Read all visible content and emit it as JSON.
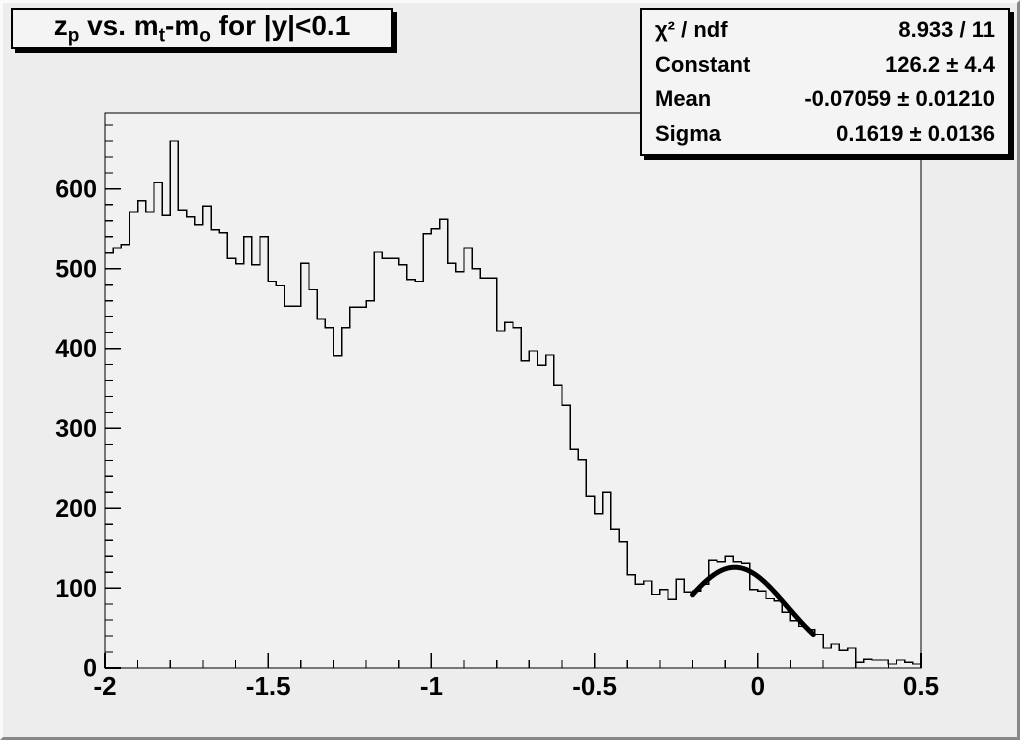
{
  "title_box": {
    "segments": [
      {
        "t": "z"
      },
      {
        "t": "p"
      },
      {
        "t": " vs. m"
      },
      {
        "t": "t"
      },
      {
        "t": "-m"
      },
      {
        "t": "o"
      },
      {
        "t": " for |y|<0.1"
      }
    ],
    "plain": "z_p vs. m_t-m_o for |y|<0.1"
  },
  "stats_box": {
    "rows": [
      {
        "label": "χ² / ndf",
        "value": "8.933 / 11"
      },
      {
        "label": "Constant",
        "value": "126.2 ± 4.4"
      },
      {
        "label": "Mean",
        "value": "-0.07059 ± 0.01210"
      },
      {
        "label": "Sigma",
        "value": "0.1619 ± 0.0136"
      }
    ]
  },
  "colors": {
    "canvas_bg": "#ededed",
    "plot_bg": "#f1f1f1",
    "line": "#000000",
    "fit_line": "#000000",
    "pave_bg": "#f4f4f4",
    "shadow": "#000000"
  },
  "chart_data": {
    "type": "bar",
    "subtype": "step-histogram",
    "title": "z_p vs. m_t-m_o for |y|<0.1",
    "xlabel": "",
    "ylabel": "",
    "grid": false,
    "x_range": [
      -2.0,
      0.5
    ],
    "y_range": [
      0,
      695
    ],
    "bin_start": -2.0,
    "bin_width": 0.025,
    "bin_values": [
      520,
      526,
      530,
      571,
      585,
      571,
      608,
      567,
      660,
      573,
      565,
      555,
      578,
      549,
      545,
      513,
      506,
      540,
      505,
      540,
      484,
      479,
      453,
      453,
      507,
      474,
      437,
      426,
      391,
      426,
      452,
      452,
      460,
      521,
      513,
      513,
      505,
      486,
      484,
      544,
      550,
      562,
      507,
      496,
      526,
      500,
      488,
      488,
      422,
      433,
      426,
      385,
      397,
      379,
      392,
      354,
      329,
      274,
      261,
      215,
      193,
      220,
      174,
      158,
      117,
      105,
      109,
      92,
      98,
      86,
      111,
      95,
      96,
      105,
      135,
      133,
      140,
      133,
      131,
      98,
      96,
      87,
      84,
      70,
      59,
      52,
      48,
      42,
      25,
      30,
      22,
      25,
      7,
      11,
      10,
      10,
      5,
      10,
      7,
      5
    ],
    "x_ticks_major": [
      -2,
      -1.5,
      -1,
      -0.5,
      0,
      0.5
    ],
    "x_tick_labels": [
      "-2",
      "-1.5",
      "-1",
      "-0.5",
      "0",
      "0.5"
    ],
    "x_minor_step": 0.1,
    "y_ticks_major": [
      0,
      100,
      200,
      300,
      400,
      500,
      600
    ],
    "y_tick_labels": [
      "0",
      "100",
      "200",
      "300",
      "400",
      "500",
      "600"
    ],
    "y_minor_step": 20,
    "fit": {
      "type": "gaussian",
      "constant": 126.2,
      "mean": -0.07059,
      "sigma": 0.1619,
      "chi2": 8.933,
      "ndf": 11,
      "draw_range": [
        -0.2,
        0.17
      ],
      "line_width": 5
    }
  }
}
